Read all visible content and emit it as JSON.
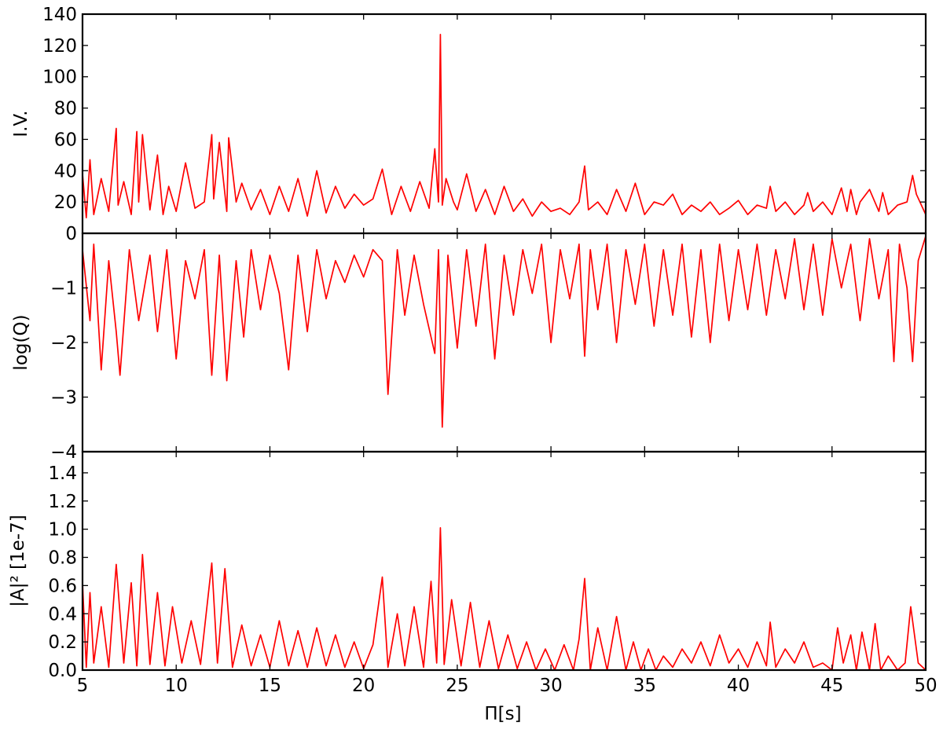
{
  "chart_data": {
    "type": "line",
    "shared_x": {
      "label": "Π[s]",
      "xlim": [
        5,
        50
      ],
      "ticks": [
        5,
        10,
        15,
        20,
        25,
        30,
        35,
        40,
        45,
        50
      ],
      "tick_labels": [
        "5",
        "10",
        "15",
        "20",
        "25",
        "30",
        "35",
        "40",
        "45",
        "50"
      ]
    },
    "line_color": "#ff0000",
    "grid": false,
    "legend": "none",
    "panels": [
      {
        "id": "iv",
        "ylabel": "I.V.",
        "ylim": [
          0,
          140
        ],
        "yticks": [
          0,
          20,
          40,
          60,
          80,
          100,
          120,
          140
        ],
        "ytick_labels": [
          "0",
          "20",
          "40",
          "60",
          "80",
          "100",
          "120",
          "140"
        ],
        "series": [
          {
            "x": [
              5.0,
              5.2,
              5.4,
              5.6,
              6.0,
              6.4,
              6.8,
              6.9,
              7.2,
              7.6,
              7.9,
              8.0,
              8.2,
              8.6,
              9.0,
              9.3,
              9.6,
              10.0,
              10.5,
              11.0,
              11.5,
              11.9,
              12.0,
              12.3,
              12.7,
              12.8,
              13.2,
              13.5,
              14.0,
              14.5,
              15.0,
              15.5,
              16.0,
              16.5,
              17.0,
              17.5,
              18.0,
              18.5,
              19.0,
              19.5,
              20.0,
              20.5,
              21.0,
              21.5,
              22.0,
              22.5,
              23.0,
              23.5,
              23.8,
              24.0,
              24.1,
              24.2,
              24.4,
              24.8,
              25.0,
              25.5,
              26.0,
              26.5,
              27.0,
              27.5,
              28.0,
              28.5,
              29.0,
              29.5,
              30.0,
              30.5,
              31.0,
              31.5,
              31.8,
              32.0,
              32.5,
              33.0,
              33.5,
              34.0,
              34.5,
              35.0,
              35.5,
              36.0,
              36.5,
              37.0,
              37.5,
              38.0,
              38.5,
              39.0,
              39.5,
              40.0,
              40.5,
              41.0,
              41.5,
              41.7,
              42.0,
              42.5,
              43.0,
              43.5,
              43.7,
              44.0,
              44.5,
              45.0,
              45.5,
              45.8,
              46.0,
              46.3,
              46.5,
              47.0,
              47.5,
              47.7,
              48.0,
              48.5,
              49.0,
              49.3,
              49.5,
              50.0
            ],
            "y": [
              38,
              10,
              47,
              12,
              35,
              14,
              67,
              18,
              33,
              12,
              65,
              20,
              63,
              15,
              50,
              12,
              30,
              14,
              45,
              16,
              20,
              63,
              22,
              58,
              14,
              61,
              20,
              32,
              15,
              28,
              12,
              30,
              14,
              35,
              11,
              40,
              13,
              30,
              16,
              25,
              18,
              22,
              41,
              12,
              30,
              14,
              33,
              16,
              54,
              20,
              127,
              18,
              35,
              20,
              15,
              38,
              14,
              28,
              12,
              30,
              14,
              22,
              11,
              20,
              14,
              16,
              12,
              20,
              43,
              15,
              20,
              12,
              28,
              14,
              32,
              12,
              20,
              18,
              25,
              12,
              18,
              14,
              20,
              12,
              16,
              21,
              12,
              18,
              16,
              30,
              14,
              20,
              12,
              18,
              26,
              14,
              20,
              12,
              29,
              14,
              28,
              12,
              20,
              28,
              14,
              26,
              12,
              18,
              20,
              37,
              25,
              12
            ]
          }
        ]
      },
      {
        "id": "logq",
        "ylabel": "log(Q)",
        "ylim": [
          -4,
          0
        ],
        "yticks": [
          -4,
          -3,
          -2,
          -1,
          0
        ],
        "ytick_labels": [
          "−4",
          "−3",
          "−2",
          "−1",
          "0"
        ],
        "series": [
          {
            "x": [
              5.0,
              5.4,
              5.6,
              6.0,
              6.4,
              6.8,
              7.0,
              7.5,
              8.0,
              8.6,
              9.0,
              9.5,
              10.0,
              10.5,
              11.0,
              11.5,
              11.9,
              12.3,
              12.7,
              13.2,
              13.6,
              14.0,
              14.5,
              15.0,
              15.5,
              16.0,
              16.5,
              17.0,
              17.5,
              18.0,
              18.5,
              19.0,
              19.5,
              20.0,
              20.5,
              21.0,
              21.3,
              21.8,
              22.2,
              22.7,
              23.2,
              23.8,
              24.0,
              24.2,
              24.5,
              25.0,
              25.5,
              26.0,
              26.5,
              27.0,
              27.5,
              28.0,
              28.5,
              29.0,
              29.5,
              30.0,
              30.5,
              31.0,
              31.5,
              31.8,
              32.1,
              32.5,
              33.0,
              33.5,
              34.0,
              34.5,
              35.0,
              35.5,
              36.0,
              36.5,
              37.0,
              37.5,
              38.0,
              38.5,
              39.0,
              39.5,
              40.0,
              40.5,
              41.0,
              41.5,
              42.0,
              42.5,
              43.0,
              43.5,
              44.0,
              44.5,
              45.0,
              45.5,
              46.0,
              46.5,
              47.0,
              47.5,
              48.0,
              48.3,
              48.6,
              49.0,
              49.3,
              49.6,
              50.0
            ],
            "y": [
              -0.3,
              -1.6,
              -0.2,
              -2.5,
              -0.5,
              -1.8,
              -2.6,
              -0.3,
              -1.6,
              -0.4,
              -1.8,
              -0.3,
              -2.3,
              -0.5,
              -1.2,
              -0.3,
              -2.6,
              -0.4,
              -2.7,
              -0.5,
              -1.9,
              -0.3,
              -1.4,
              -0.4,
              -1.1,
              -2.5,
              -0.4,
              -1.8,
              -0.3,
              -1.2,
              -0.5,
              -0.9,
              -0.4,
              -0.8,
              -0.3,
              -0.5,
              -2.95,
              -0.3,
              -1.5,
              -0.4,
              -1.3,
              -2.2,
              -0.3,
              -3.55,
              -0.4,
              -2.1,
              -0.3,
              -1.7,
              -0.2,
              -2.3,
              -0.4,
              -1.5,
              -0.3,
              -1.1,
              -0.2,
              -2.0,
              -0.3,
              -1.2,
              -0.2,
              -2.25,
              -0.3,
              -1.4,
              -0.2,
              -2.0,
              -0.3,
              -1.3,
              -0.2,
              -1.7,
              -0.3,
              -1.5,
              -0.2,
              -1.9,
              -0.3,
              -2.0,
              -0.2,
              -1.6,
              -0.3,
              -1.4,
              -0.2,
              -1.5,
              -0.3,
              -1.2,
              -0.1,
              -1.4,
              -0.2,
              -1.5,
              -0.1,
              -1.0,
              -0.2,
              -1.6,
              -0.1,
              -1.2,
              -0.3,
              -2.35,
              -0.2,
              -1.0,
              -2.35,
              -0.5,
              -0.05
            ]
          }
        ]
      },
      {
        "id": "amp",
        "ylabel": "|A|² [1e-7]",
        "ylim": [
          0,
          1.55
        ],
        "yticks": [
          0.0,
          0.2,
          0.4,
          0.6,
          0.8,
          1.0,
          1.2,
          1.4
        ],
        "ytick_labels": [
          "0.0",
          "0.2",
          "0.4",
          "0.6",
          "0.8",
          "1.0",
          "1.2",
          "1.4"
        ],
        "series": [
          {
            "x": [
              5.0,
              5.2,
              5.4,
              5.6,
              6.0,
              6.4,
              6.8,
              7.2,
              7.6,
              7.9,
              8.2,
              8.6,
              9.0,
              9.4,
              9.8,
              10.3,
              10.8,
              11.3,
              11.9,
              12.2,
              12.6,
              13.0,
              13.5,
              14.0,
              14.5,
              15.0,
              15.5,
              16.0,
              16.5,
              17.0,
              17.5,
              18.0,
              18.5,
              19.0,
              19.5,
              20.0,
              20.5,
              21.0,
              21.3,
              21.8,
              22.2,
              22.7,
              23.2,
              23.6,
              23.9,
              24.1,
              24.3,
              24.7,
              25.2,
              25.7,
              26.2,
              26.7,
              27.2,
              27.7,
              28.2,
              28.7,
              29.2,
              29.7,
              30.2,
              30.7,
              31.2,
              31.5,
              31.8,
              32.1,
              32.5,
              33.0,
              33.5,
              34.0,
              34.4,
              34.8,
              35.2,
              35.6,
              36.0,
              36.5,
              37.0,
              37.5,
              38.0,
              38.5,
              39.0,
              39.5,
              40.0,
              40.5,
              41.0,
              41.5,
              41.7,
              42.0,
              42.5,
              43.0,
              43.5,
              44.0,
              44.5,
              45.0,
              45.3,
              45.6,
              46.0,
              46.3,
              46.6,
              47.0,
              47.3,
              47.6,
              48.0,
              48.5,
              48.9,
              49.2,
              49.6,
              50.0
            ],
            "y": [
              0.62,
              0.02,
              0.55,
              0.05,
              0.45,
              0.02,
              0.75,
              0.05,
              0.62,
              0.03,
              0.82,
              0.04,
              0.55,
              0.03,
              0.45,
              0.05,
              0.35,
              0.04,
              0.76,
              0.05,
              0.72,
              0.02,
              0.32,
              0.03,
              0.25,
              0.02,
              0.35,
              0.03,
              0.28,
              0.02,
              0.3,
              0.03,
              0.25,
              0.02,
              0.2,
              0.01,
              0.18,
              0.66,
              0.02,
              0.4,
              0.03,
              0.45,
              0.02,
              0.63,
              0.05,
              1.01,
              0.04,
              0.5,
              0.03,
              0.48,
              0.02,
              0.35,
              0.01,
              0.25,
              0.01,
              0.2,
              0.0,
              0.15,
              0.0,
              0.18,
              0.0,
              0.22,
              0.65,
              0.0,
              0.3,
              0.0,
              0.38,
              0.0,
              0.2,
              0.0,
              0.15,
              0.0,
              0.1,
              0.02,
              0.15,
              0.05,
              0.2,
              0.03,
              0.25,
              0.05,
              0.15,
              0.02,
              0.2,
              0.03,
              0.34,
              0.02,
              0.15,
              0.05,
              0.2,
              0.02,
              0.05,
              0.0,
              0.3,
              0.05,
              0.25,
              0.0,
              0.27,
              0.0,
              0.33,
              0.0,
              0.1,
              0.0,
              0.05,
              0.45,
              0.05,
              0.0
            ]
          }
        ]
      }
    ]
  }
}
